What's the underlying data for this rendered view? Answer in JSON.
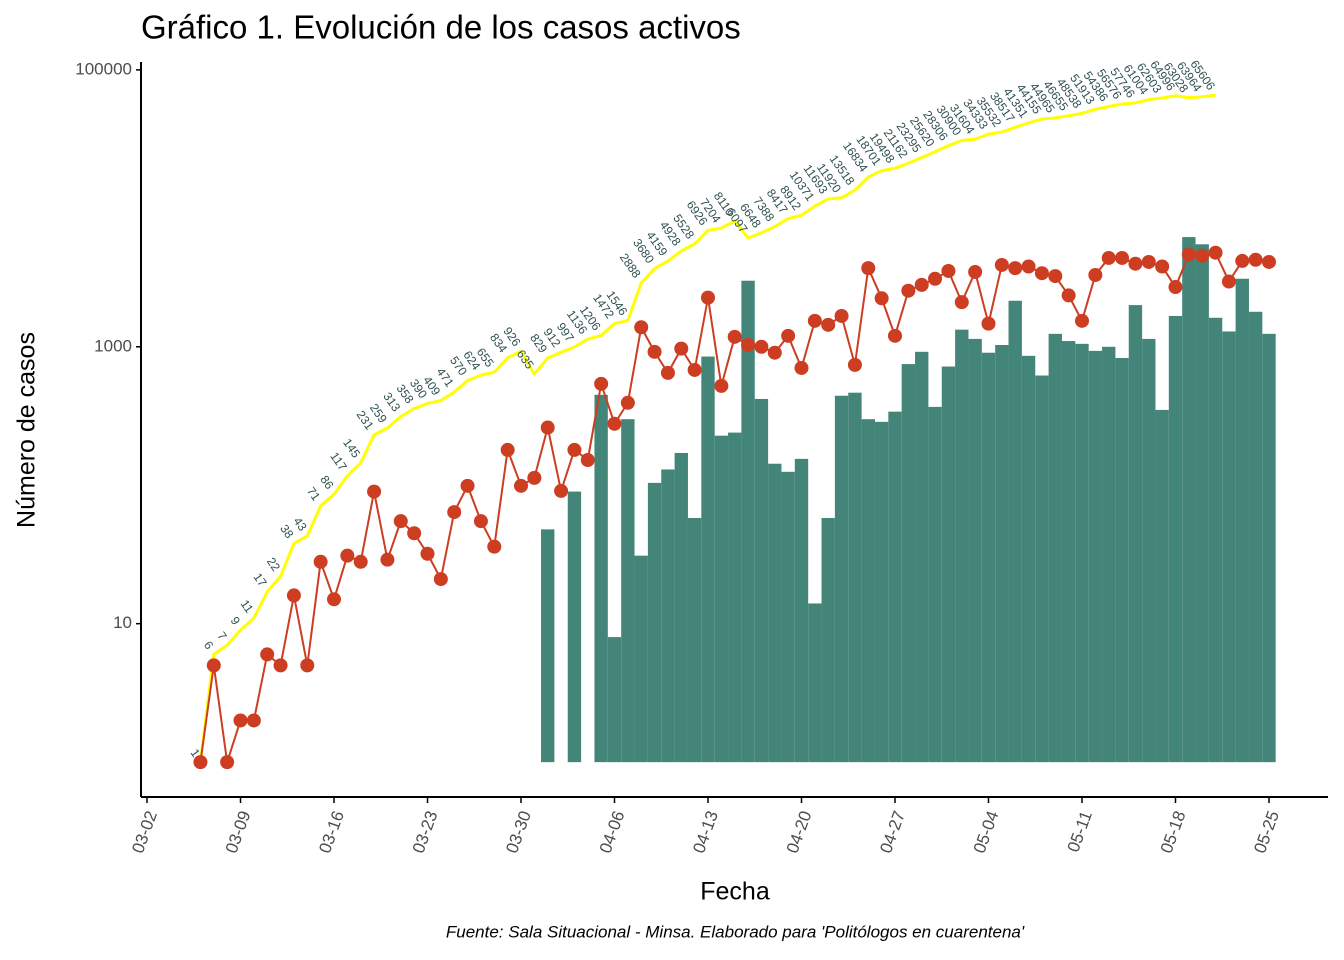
{
  "chart_data": {
    "type": "combo",
    "title": "Gráfico 1. Evolución de los casos activos",
    "ylabel": "Número de casos",
    "xlabel": "Fecha",
    "caption": "Fuente: Sala Situacional - Minsa. Elaborado para 'Politólogos en cuarentena'",
    "log_y": true,
    "grid": false,
    "ylim": [
      0.56,
      114000
    ],
    "yticks": [
      10,
      1000,
      100000
    ],
    "xticks": [
      "03-02",
      "03-09",
      "03-16",
      "03-23",
      "03-30",
      "04-06",
      "04-13",
      "04-20",
      "04-27",
      "05-04",
      "05-11",
      "05-18",
      "05-25"
    ],
    "x": [
      "03-06",
      "03-07",
      "03-08",
      "03-09",
      "03-10",
      "03-11",
      "03-12",
      "03-13",
      "03-14",
      "03-15",
      "03-16",
      "03-17",
      "03-18",
      "03-19",
      "03-20",
      "03-21",
      "03-22",
      "03-23",
      "03-24",
      "03-25",
      "03-26",
      "03-27",
      "03-28",
      "03-29",
      "03-30",
      "03-31",
      "04-01",
      "04-02",
      "04-03",
      "04-04",
      "04-05",
      "04-06",
      "04-07",
      "04-08",
      "04-09",
      "04-10",
      "04-11",
      "04-12",
      "04-13",
      "04-14",
      "04-15",
      "04-16",
      "04-17",
      "04-18",
      "04-19",
      "04-20",
      "04-21",
      "04-22",
      "04-23",
      "04-24",
      "04-25",
      "04-26",
      "04-27",
      "04-28",
      "04-29",
      "04-30",
      "05-01",
      "05-02",
      "05-03",
      "05-04",
      "05-05",
      "05-06",
      "05-07",
      "05-08",
      "05-09",
      "05-10",
      "05-11",
      "05-12",
      "05-13",
      "05-14",
      "05-15",
      "05-16",
      "05-17",
      "05-18",
      "05-19",
      "05-20",
      "05-21",
      "05-22",
      "05-23",
      "05-24",
      "05-25"
    ],
    "series": [
      {
        "type": "bar",
        "color": "#44857a",
        "values": [
          null,
          null,
          null,
          null,
          null,
          null,
          null,
          null,
          null,
          null,
          null,
          null,
          null,
          null,
          null,
          null,
          null,
          null,
          null,
          null,
          null,
          null,
          null,
          null,
          null,
          null,
          48,
          null,
          90,
          null,
          450,
          8,
          300,
          31,
          104,
          130,
          171,
          58,
          850,
          228,
          240,
          3000,
          420,
          143,
          125,
          155,
          14,
          58,
          443,
          466,
          300,
          287,
          340,
          750,
          920,
          368,
          720,
          1330,
          1140,
          906,
          1030,
          2150,
          860,
          620,
          1240,
          1100,
          1050,
          934,
          1000,
          830,
          2000,
          1140,
          350,
          1670,
          6200,
          5500,
          1620,
          1290,
          3100,
          1790,
          1240
        ]
      },
      {
        "type": "line",
        "color": "#ffff00",
        "data_labels": true,
        "values": [
          1,
          6,
          7,
          9,
          11,
          17,
          22,
          38,
          43,
          71,
          86,
          117,
          145,
          231,
          259,
          313,
          358,
          390,
          409,
          471,
          570,
          624,
          655,
          834,
          926,
          635,
          829,
          912,
          997,
          1136,
          1206,
          1472,
          1546,
          2888,
          3680,
          4159,
          4928,
          5528,
          6926,
          7204,
          8110,
          6097,
          6648,
          7388,
          8417,
          8912,
          10371,
          11693,
          11920,
          13518,
          16834,
          18701,
          19498,
          21162,
          23295,
          25620,
          28306,
          30900,
          31604,
          34333,
          35532,
          38517,
          41351,
          44155,
          44965,
          46655,
          48538,
          51913,
          54386,
          56576,
          57746,
          61004,
          62603,
          64996,
          63028,
          63964,
          65606,
          null,
          null,
          null,
          null
        ]
      },
      {
        "type": "line-points",
        "color": "#cc3d21",
        "values": [
          1,
          5,
          1,
          2,
          2,
          6,
          5,
          16,
          5,
          28,
          15,
          31,
          28,
          90,
          29,
          55,
          45,
          32,
          21,
          64,
          99,
          55,
          36,
          180,
          99,
          113,
          261,
          91,
          180,
          152,
          540,
          278,
          394,
          1384,
          919,
          648,
          970,
          680,
          2265,
          522,
          1180,
          1030,
          1000,
          906,
          1200,
          703,
          1540,
          1440,
          1670,
          740,
          3700,
          2240,
          1200,
          2540,
          2800,
          3100,
          3530,
          2100,
          3470,
          1470,
          3900,
          3700,
          3800,
          3400,
          3240,
          2350,
          1540,
          3300,
          4380,
          4380,
          3980,
          4100,
          3800,
          2700,
          4650,
          4550,
          4780,
          2960,
          4170,
          4250,
          4100
        ]
      }
    ]
  }
}
